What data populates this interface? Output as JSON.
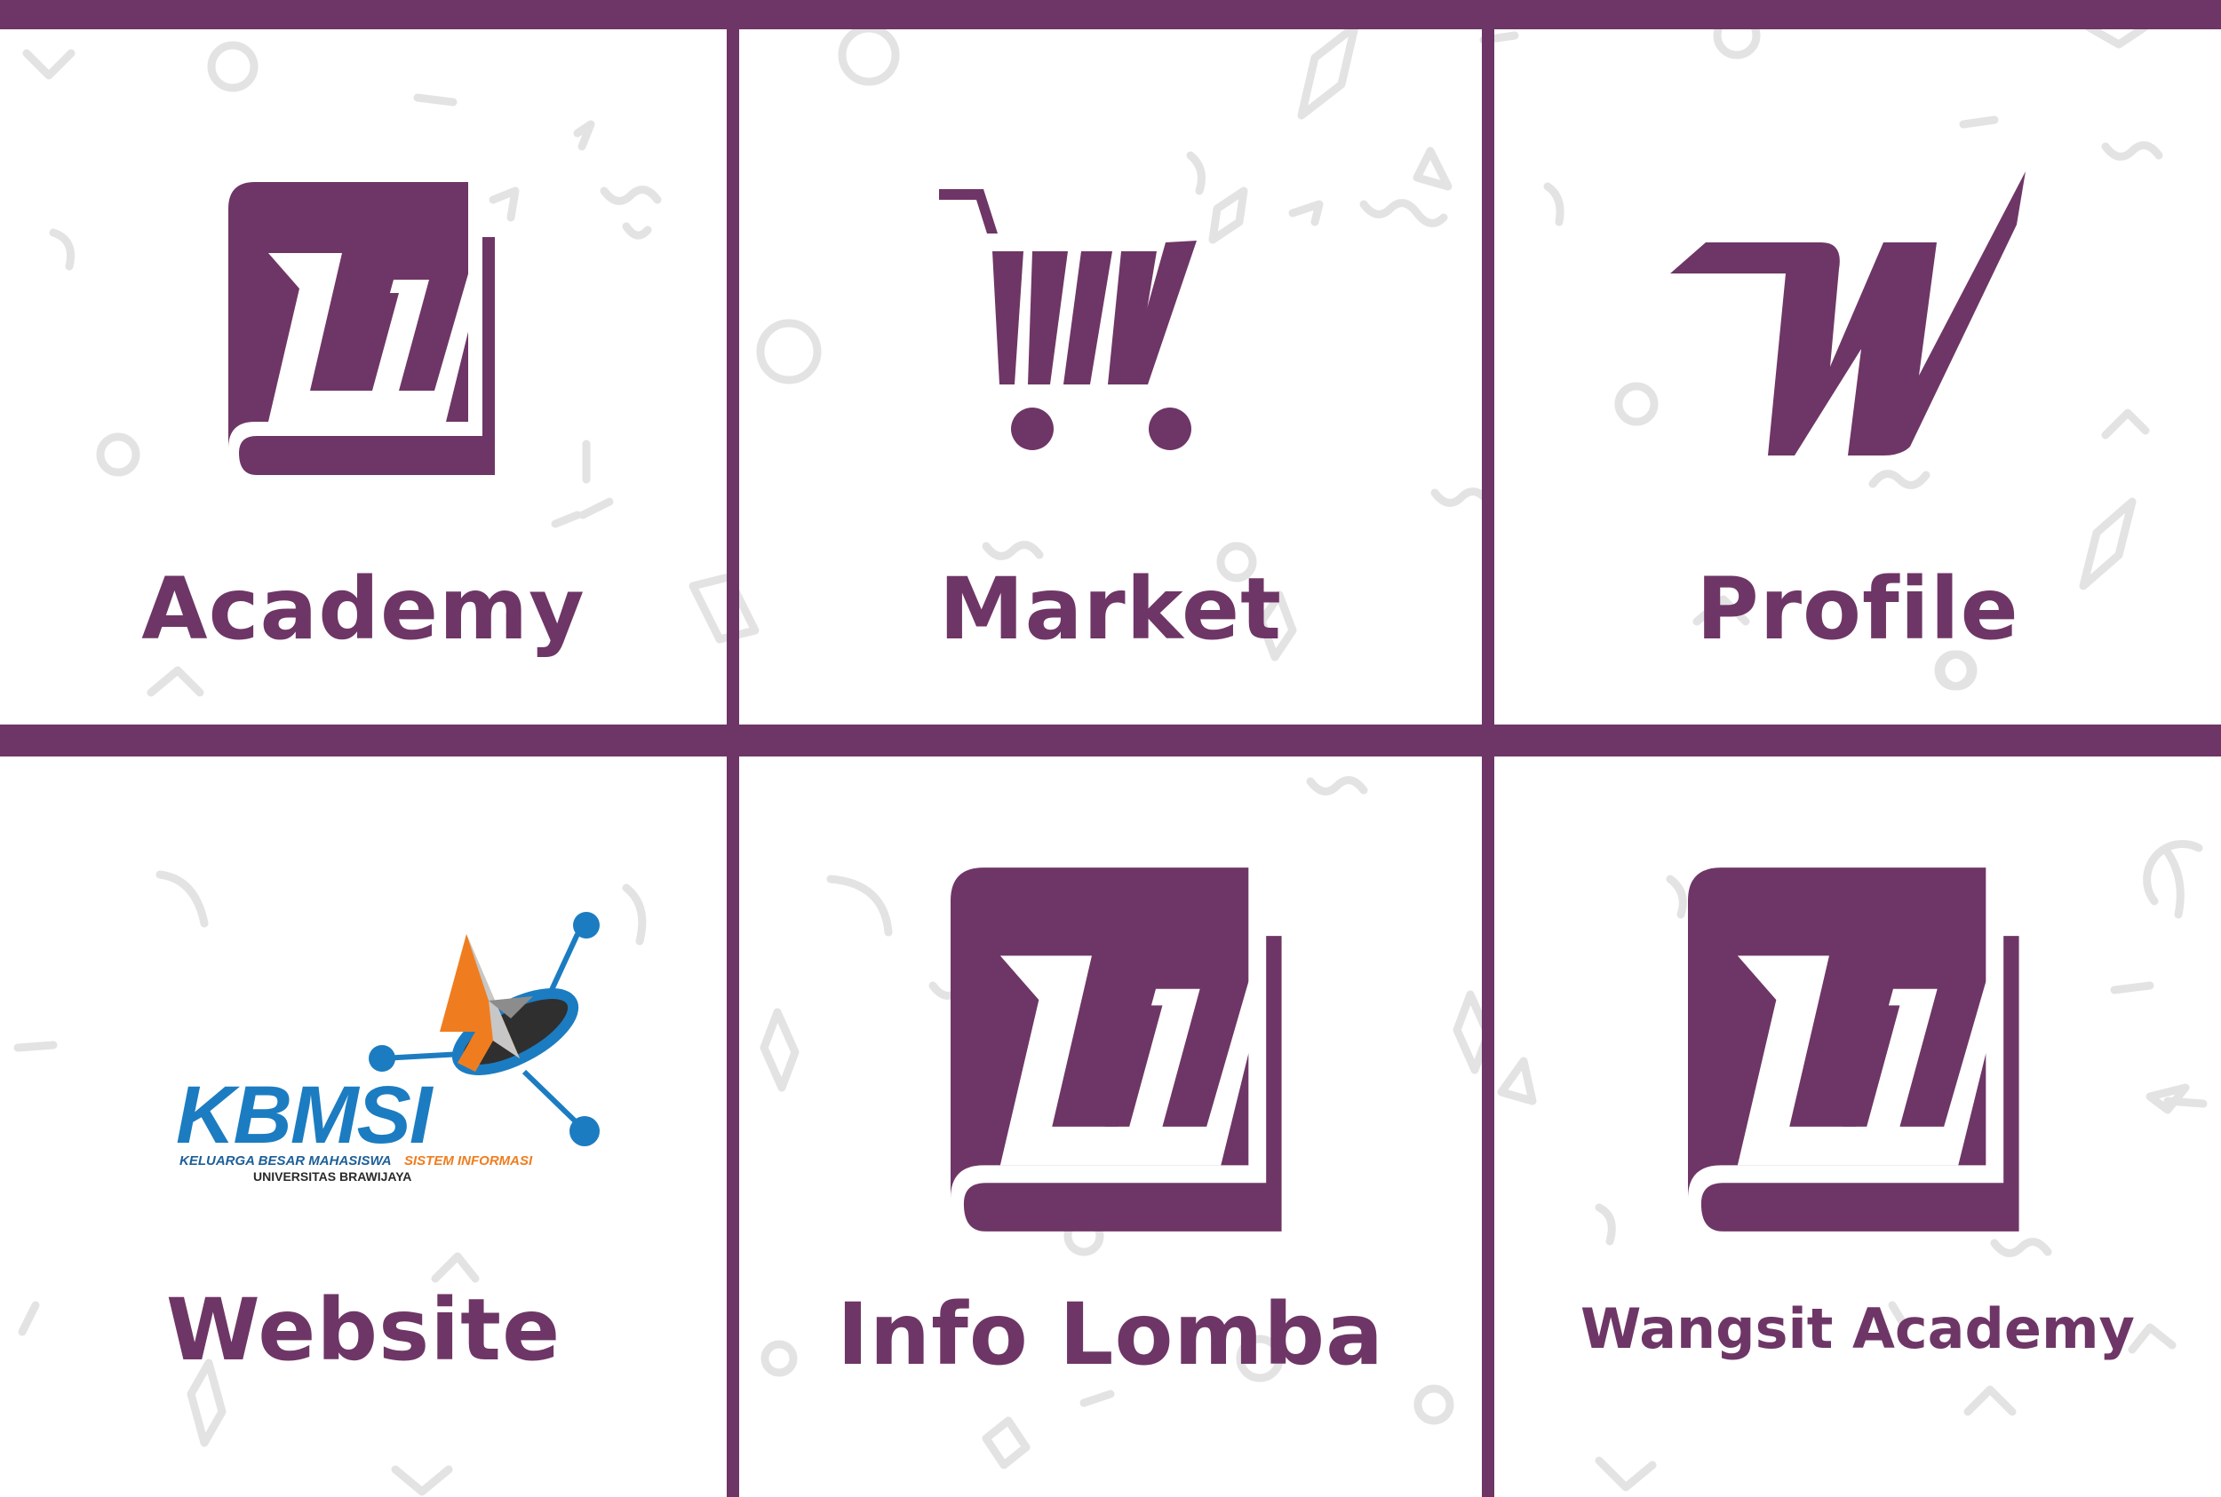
{
  "brand_color": "#6e3666",
  "background_color": "#ffffff",
  "pattern_color": "#e1e1e1",
  "tiles": [
    {
      "label": "Academy",
      "icon": "book-w-logo-icon"
    },
    {
      "label": "Market",
      "icon": "cart-w-logo-icon"
    },
    {
      "label": "Profile",
      "icon": "w-logo-icon"
    },
    {
      "label": "Website",
      "icon": "kbmsi-logo"
    },
    {
      "label": "Info Lomba",
      "icon": "book-w-logo-icon"
    },
    {
      "label": "Wangsit Academy",
      "icon": "book-w-logo-icon"
    }
  ],
  "kbmsi_logo": {
    "wordmark": "KBMSI",
    "tagline_main": "KELUARGA BESAR MAHASISWA",
    "tagline_accent": "SISTEM INFORMASI",
    "university": "UNIVERSITAS BRAWIJAYA"
  }
}
